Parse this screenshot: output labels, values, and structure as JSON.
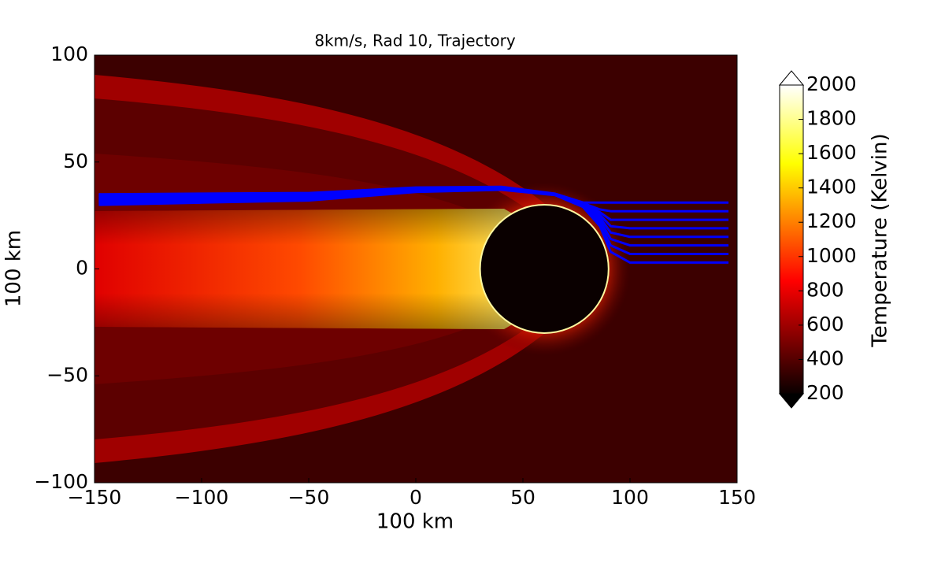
{
  "chart_data": {
    "type": "heatmap",
    "title": "8km/s, Rad 10, Trajectory",
    "x_label": "100 km",
    "y_label": "100 km",
    "xlim": [
      -150,
      150
    ],
    "ylim": [
      -100,
      100
    ],
    "xticks": [
      {
        "value": -150,
        "label": "−150"
      },
      {
        "value": -100,
        "label": "−100"
      },
      {
        "value": -50,
        "label": "−50"
      },
      0,
      50,
      100,
      150
    ],
    "yticks": [
      {
        "value": -100,
        "label": "−100"
      },
      {
        "value": -50,
        "label": "−50"
      },
      0,
      50,
      100
    ],
    "colormap": "hot",
    "colorbar": {
      "label": "Temperature (Kelvin)",
      "lim": [
        200,
        2000
      ],
      "ticks": [
        200,
        400,
        600,
        800,
        1000,
        1200,
        1400,
        1600,
        1800,
        2000
      ]
    },
    "circle": {
      "x": 60,
      "y": 0,
      "r": 30
    },
    "x": [
      -148,
      -100,
      -50,
      0,
      40,
      65,
      78,
      86,
      91,
      100,
      146
    ],
    "series": [
      {
        "color": "#0000ff",
        "values": [
          30,
          31,
          32,
          36,
          37,
          34.5,
          29,
          20,
          8,
          3,
          3
        ]
      },
      {
        "color": "#0000ff",
        "values": [
          30.7,
          31.6,
          32.5,
          36.3,
          37.2,
          34.6,
          29.3,
          21.3,
          11,
          7,
          7
        ]
      },
      {
        "color": "#0000ff",
        "values": [
          31.4,
          32.2,
          33,
          36.6,
          37.4,
          34.7,
          29.6,
          22.6,
          14,
          11,
          11
        ]
      },
      {
        "color": "#0000ff",
        "values": [
          32.1,
          32.8,
          33.5,
          36.9,
          37.6,
          34.8,
          29.9,
          23.9,
          17,
          15,
          15
        ]
      },
      {
        "color": "#0000ff",
        "values": [
          32.8,
          33.4,
          34,
          37.2,
          37.8,
          34.9,
          30.2,
          25.2,
          20,
          19,
          19
        ]
      },
      {
        "color": "#0000ff",
        "values": [
          33.5,
          34,
          34.5,
          37.5,
          38,
          35,
          30.5,
          26.5,
          23,
          23,
          23
        ]
      },
      {
        "color": "#0000ff",
        "values": [
          34.2,
          34.6,
          35,
          37.8,
          38.2,
          35.1,
          30.8,
          27.8,
          27,
          27,
          27
        ]
      },
      {
        "color": "#0000ff",
        "values": [
          34.9,
          35.2,
          35.5,
          38.1,
          38.4,
          35.2,
          31.1,
          31,
          31,
          31,
          31
        ]
      }
    ]
  }
}
